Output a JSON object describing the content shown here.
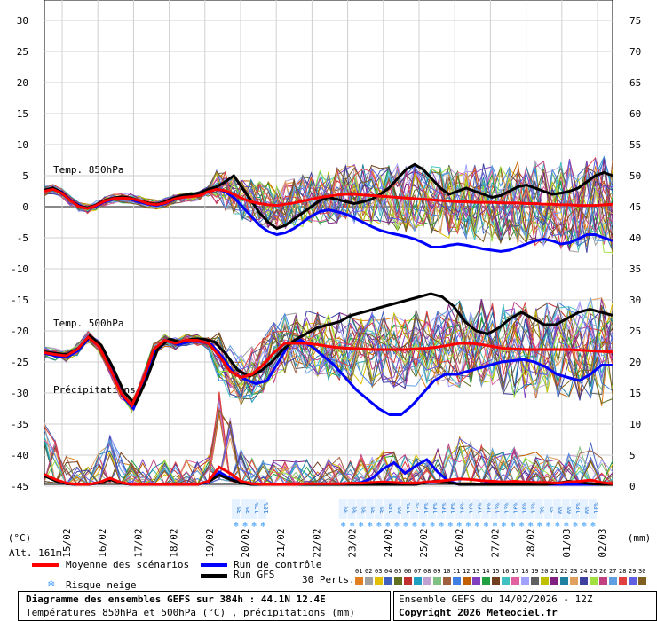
{
  "chart_data": {
    "type": "line",
    "title": "Diagramme des ensembles GEFS sur 384h : 44.1N 12.4E",
    "subtitle": "Températures 850hPa et 500hPa (°C) , précipitations (mm)",
    "left_unit": "(°C)",
    "right_unit": "(mm)",
    "altitude": "Alt. 161m",
    "left_ticks": [
      "30",
      "25",
      "20",
      "15",
      "10",
      "5",
      "0",
      "-5",
      "-10",
      "-15",
      "-20",
      "-25",
      "-30",
      "-35",
      "-40",
      "-45"
    ],
    "right_ticks": [
      "75",
      "70",
      "65",
      "60",
      "55",
      "50",
      "45",
      "40",
      "35",
      "30",
      "25",
      "20",
      "15",
      "10",
      "5",
      "0"
    ],
    "x_dates": [
      "15/02",
      "16/02",
      "17/02",
      "18/02",
      "19/02",
      "20/02",
      "21/02",
      "22/02",
      "23/02",
      "24/02",
      "25/02",
      "26/02",
      "27/02",
      "28/02",
      "01/03",
      "02/03"
    ],
    "panel_labels": [
      "Temp. 850hPa",
      "Temp. 500hPa",
      "Précipitations"
    ],
    "t850_mean": [
      2.5,
      2.8,
      2.2,
      1.0,
      0.0,
      -0.3,
      0.2,
      0.9,
      1.3,
      1.4,
      1.3,
      1.0,
      0.5,
      0.3,
      0.6,
      1.2,
      1.5,
      1.6,
      1.8,
      2.4,
      2.8,
      2.6,
      2.0,
      1.3,
      0.8,
      0.5,
      0.3,
      0.2,
      0.4,
      0.6,
      0.9,
      1.2,
      1.5,
      1.7,
      1.9,
      2.0,
      2.0,
      1.9,
      1.8,
      1.7,
      1.6,
      1.5,
      1.4,
      1.3,
      1.2,
      1.1,
      1.0,
      0.9,
      0.8,
      0.8,
      0.7,
      0.7,
      0.7,
      0.6,
      0.6,
      0.6,
      0.5,
      0.5,
      0.4,
      0.4,
      0.3,
      0.3,
      0.2,
      0.2,
      0.2,
      0.3,
      0.4
    ],
    "t850_control": [
      2.6,
      2.9,
      2.4,
      1.1,
      0.2,
      -0.3,
      0.1,
      0.8,
      1.2,
      1.4,
      1.2,
      0.8,
      0.4,
      0.2,
      0.5,
      1.1,
      1.5,
      1.7,
      1.9,
      2.5,
      2.9,
      2.4,
      1.5,
      0.0,
      -1.5,
      -3.0,
      -4.0,
      -4.5,
      -4.2,
      -3.5,
      -2.5,
      -1.5,
      -0.8,
      -0.5,
      -0.8,
      -1.2,
      -1.8,
      -2.5,
      -3.2,
      -3.8,
      -4.2,
      -4.5,
      -4.8,
      -5.2,
      -5.8,
      -6.5,
      -6.5,
      -6.2,
      -6.0,
      -6.2,
      -6.5,
      -6.8,
      -7.0,
      -7.2,
      -7.0,
      -6.5,
      -6.0,
      -5.5,
      -5.2,
      -5.5,
      -6.0,
      -5.8,
      -5.2,
      -4.5,
      -4.5,
      -5.0,
      -5.5
    ],
    "t850_gfs": [
      2.7,
      3.0,
      2.3,
      1.0,
      0.1,
      -0.2,
      0.3,
      1.0,
      1.4,
      1.6,
      1.4,
      1.0,
      0.6,
      0.4,
      0.8,
      1.4,
      1.8,
      2.0,
      2.2,
      2.8,
      3.2,
      4.0,
      5.0,
      3.0,
      1.0,
      -1.0,
      -2.5,
      -3.5,
      -3.0,
      -2.0,
      -1.0,
      0.0,
      1.0,
      1.5,
      1.2,
      0.8,
      0.5,
      0.8,
      1.2,
      2.0,
      3.0,
      4.5,
      6.0,
      6.8,
      6.0,
      4.5,
      3.0,
      2.0,
      2.5,
      3.0,
      2.5,
      2.0,
      1.5,
      1.8,
      2.5,
      3.2,
      3.5,
      3.0,
      2.5,
      2.0,
      2.2,
      2.5,
      3.0,
      4.0,
      5.0,
      5.5,
      5.0
    ],
    "t500_mean": [
      -23.5,
      -23.8,
      -24.0,
      -23.0,
      -21.0,
      -22.5,
      -26.0,
      -30.0,
      -32.0,
      -28.0,
      -23.0,
      -21.5,
      -22.0,
      -21.5,
      -21.5,
      -22.0,
      -24.0,
      -26.5,
      -27.5,
      -27.0,
      -25.5,
      -23.5,
      -22.0,
      -22.0,
      -22.0,
      -22.2,
      -22.5,
      -22.7,
      -22.8,
      -22.9,
      -23.0,
      -23.0,
      -23.0,
      -23.0,
      -22.9,
      -22.8,
      -22.6,
      -22.3,
      -22.0,
      -22.0,
      -22.2,
      -22.5,
      -22.8,
      -22.9,
      -23.0,
      -23.0,
      -23.0,
      -23.0,
      -23.0,
      -23.1,
      -23.2,
      -23.3,
      -23.4
    ],
    "t500_control": [
      -23.6,
      -24.0,
      -24.2,
      -23.2,
      -21.2,
      -22.6,
      -26.2,
      -30.5,
      -32.5,
      -28.2,
      -23.2,
      -21.6,
      -22.2,
      -21.7,
      -21.7,
      -22.2,
      -24.3,
      -26.8,
      -27.8,
      -28.5,
      -28.0,
      -25.0,
      -22.0,
      -21.5,
      -22.5,
      -24.0,
      -25.5,
      -27.5,
      -29.5,
      -31.0,
      -32.5,
      -33.5,
      -33.5,
      -32.0,
      -30.0,
      -28.0,
      -27.0,
      -27.0,
      -26.5,
      -26.0,
      -25.5,
      -25.0,
      -24.8,
      -24.6,
      -25.0,
      -25.8,
      -27.0,
      -27.5,
      -28.0,
      -27.0,
      -25.5,
      -25.5
    ],
    "t500_gfs": [
      -23.4,
      -23.6,
      -23.8,
      -22.8,
      -20.8,
      -22.3,
      -25.8,
      -29.8,
      -31.8,
      -27.8,
      -22.8,
      -21.3,
      -21.8,
      -21.3,
      -21.3,
      -21.8,
      -23.8,
      -26.3,
      -27.3,
      -26.5,
      -25.0,
      -23.0,
      -21.5,
      -20.5,
      -19.5,
      -19.0,
      -18.5,
      -17.5,
      -17.0,
      -16.5,
      -16.0,
      -15.5,
      -15.0,
      -14.5,
      -14.0,
      -14.5,
      -16.0,
      -18.5,
      -20.0,
      -20.5,
      -19.5,
      -18.0,
      -17.0,
      -18.0,
      -19.0,
      -19.0,
      -18.0,
      -17.0,
      -16.5,
      -17.0,
      -17.5
    ],
    "precip_mean_mm": [
      1.6,
      0.8,
      0.2,
      0.0,
      0.0,
      0.3,
      1.0,
      0.3,
      0.0,
      0.0,
      0.0,
      0.0,
      0.0,
      0.0,
      0.0,
      0.5,
      2.8,
      1.8,
      0.5,
      0.1,
      0.0,
      0.0,
      0.0,
      0.0,
      0.1,
      0.1,
      0.1,
      0.1,
      0.2,
      0.2,
      0.3,
      0.4,
      0.3,
      0.2,
      0.2,
      0.4,
      0.5,
      0.7,
      0.9,
      0.8,
      0.6,
      0.5,
      0.4,
      0.5,
      0.4,
      0.3,
      0.3,
      0.2,
      0.4,
      0.5,
      0.7,
      0.3,
      0.1
    ],
    "precip_control_mm": [
      1.5,
      0.7,
      0.1,
      0.0,
      0.0,
      0.2,
      0.9,
      0.2,
      0.0,
      0.0,
      0.0,
      0.0,
      0.0,
      0.0,
      0.0,
      0.3,
      2.0,
      1.0,
      0.3,
      0.0,
      0.0,
      0.0,
      0.0,
      0.0,
      0.0,
      0.0,
      0.0,
      0.0,
      0.0,
      0.3,
      1.0,
      2.5,
      3.5,
      1.8,
      3.0,
      4.0,
      2.0,
      0.5,
      0.0,
      0.0,
      0.0,
      0.5,
      0.0,
      0.0,
      0.0,
      0.0,
      0.0,
      0.0,
      0.0,
      0.0,
      0.0,
      0.0,
      0.0
    ],
    "precip_gfs_mm": [
      1.4,
      0.6,
      0.1,
      0.0,
      0.0,
      0.2,
      0.8,
      0.2,
      0.0,
      0.0,
      0.0,
      0.0,
      0.0,
      0.0,
      0.0,
      0.4,
      1.5,
      0.8,
      0.2,
      0.0,
      0.0,
      0.0,
      0.0,
      0.0,
      0.0,
      0.0,
      0.0,
      0.0,
      0.0,
      0.0,
      0.0,
      0.0,
      0.0,
      0.0,
      0.0,
      0.3,
      0.6,
      0.3,
      0.0,
      0.0,
      0.0,
      0.0,
      0.0,
      0.0,
      0.0,
      0.0,
      0.0,
      0.2,
      0.5,
      0.3,
      0.1,
      0.0,
      0.0
    ],
    "snow_risk_groups": [
      {
        "start": "20/02",
        "values": [
          "3%",
          "3%",
          "13%",
          "10%"
        ]
      },
      {
        "start": "23/02",
        "values": [
          "3%",
          "3%",
          "3%",
          "3%",
          "3%",
          "10%",
          "6%",
          "13%",
          "13%",
          "16%",
          "16%",
          "16%",
          "16%",
          "16%",
          "16%",
          "16%",
          "16%",
          "13%",
          "13%",
          "16%",
          "10%",
          "13%",
          "3%",
          "3%",
          "6%",
          "6%",
          "10%",
          "6%",
          "10%"
        ]
      }
    ],
    "perturbation_count": 30,
    "grid": true
  },
  "legend": {
    "mean": "Moyenne des scénarios",
    "control": "Run de contrôle",
    "gfs": "Run GFS",
    "snow": "Risque neige",
    "perts": "30 Perts."
  },
  "perturbations": {
    "labels": [
      "01",
      "02",
      "03",
      "04",
      "05",
      "06",
      "07",
      "08",
      "09",
      "10",
      "11",
      "12",
      "13",
      "14",
      "15",
      "16",
      "17",
      "18",
      "19",
      "20",
      "21",
      "22",
      "23",
      "24",
      "25",
      "26",
      "27",
      "28",
      "29",
      "30"
    ],
    "colors": [
      "#e08020",
      "#a0a0a0",
      "#e0c000",
      "#4060c0",
      "#607020",
      "#c03030",
      "#20a0c0",
      "#c0a0d0",
      "#80c080",
      "#a06040",
      "#4080e0",
      "#c06000",
      "#8040c0",
      "#20a040",
      "#704020",
      "#40c0c0",
      "#e060a0",
      "#a0a0ff",
      "#606060",
      "#c0c000",
      "#802080",
      "#2080a0",
      "#e0a060",
      "#4040a0",
      "#a0e040",
      "#c04080",
      "#60a0e0",
      "#e04040",
      "#6060e0",
      "#806020"
    ]
  },
  "footer": {
    "title_line1": "Diagramme des ensembles GEFS sur 384h : 44.1N 12.4E",
    "title_line2": "Températures 850hPa et 500hPa (°C) , précipitations (mm)",
    "run": "Ensemble GEFS du 14/02/2026 - 12Z",
    "copyright": "Copyright 2026 Meteociel.fr"
  },
  "colors": {
    "mean": "#ff0000",
    "control": "#0000ff",
    "gfs": "#000000",
    "snow": "#3399ff"
  }
}
